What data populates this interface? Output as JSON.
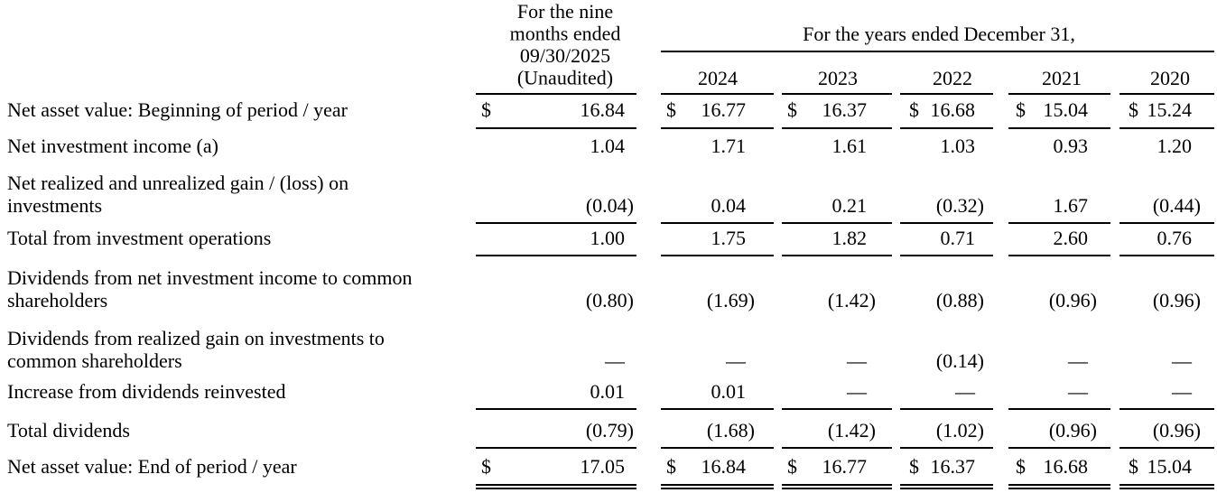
{
  "header": {
    "nine_months": [
      "For the nine",
      "months ended",
      "09/30/2025",
      "(Unaudited)"
    ],
    "years_title": "For the years ended December 31,",
    "years": [
      "2024",
      "2023",
      "2022",
      "2021",
      "2020"
    ]
  },
  "table": {
    "rows": [
      {
        "label": [
          "Net asset value: Beginning of period / year"
        ],
        "currency": [
          "$",
          "$",
          "$",
          "$",
          "$",
          "$"
        ],
        "values": [
          "16.84",
          "16.77",
          "16.37",
          "16.68",
          "15.04",
          "15.24"
        ]
      },
      {
        "label": [
          "Net investment income (a)"
        ],
        "values": [
          "1.04",
          "1.71",
          "1.61",
          "1.03",
          "0.93",
          "1.20"
        ]
      },
      {
        "label": [
          "Net realized and unrealized gain / (loss) on",
          "investments"
        ],
        "values": [
          "(0.04)",
          "0.04",
          "0.21",
          "(0.32)",
          "1.67",
          "(0.44)"
        ]
      },
      {
        "label": [
          "Total from investment operations"
        ],
        "values": [
          "1.00",
          "1.75",
          "1.82",
          "0.71",
          "2.60",
          "0.76"
        ]
      },
      {
        "label": [
          "Dividends from net investment income to common",
          "shareholders"
        ],
        "values": [
          "(0.80)",
          "(1.69)",
          "(1.42)",
          "(0.88)",
          "(0.96)",
          "(0.96)"
        ]
      },
      {
        "label": [
          "Dividends from realized gain on investments to",
          "common shareholders"
        ],
        "values": [
          "—",
          "—",
          "—",
          "(0.14)",
          "—",
          "—"
        ]
      },
      {
        "label": [
          "Increase from dividends reinvested"
        ],
        "values": [
          "0.01",
          "0.01",
          "—",
          "—",
          "—",
          "—"
        ]
      },
      {
        "label": [
          "Total dividends"
        ],
        "values": [
          "(0.79)",
          "(1.68)",
          "(1.42)",
          "(1.02)",
          "(0.96)",
          "(0.96)"
        ]
      },
      {
        "label": [
          "Net asset value: End of period / year"
        ],
        "currency": [
          "$",
          "$",
          "$",
          "$",
          "$",
          "$"
        ],
        "values": [
          "17.05",
          "16.84",
          "16.77",
          "16.37",
          "16.68",
          "15.04"
        ]
      }
    ]
  }
}
